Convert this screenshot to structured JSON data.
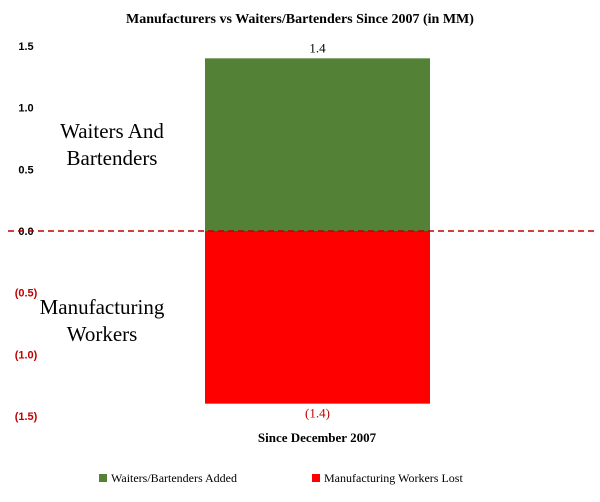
{
  "chart_data": {
    "type": "bar",
    "title": "Manufacturers vs Waiters/Bartenders Since 2007 (in MM)",
    "xlabel": "Since December 2007",
    "ylabel": "",
    "ylim": [
      -1.5,
      1.5
    ],
    "yticks": [
      {
        "value": 1.5,
        "label": "1.5"
      },
      {
        "value": 1.0,
        "label": "1.0"
      },
      {
        "value": 0.5,
        "label": "0.5"
      },
      {
        "value": 0.0,
        "label": "0.0"
      },
      {
        "value": -0.5,
        "label": "(0.5)"
      },
      {
        "value": -1.0,
        "label": "(1.0)"
      },
      {
        "value": -1.5,
        "label": "(1.5)"
      }
    ],
    "zero_line": "dashed",
    "grid": false,
    "legend_position": "bottom",
    "series": [
      {
        "name": "Waiters/Bartenders Added",
        "value": 1.4,
        "data_label": "1.4",
        "color": "#538135"
      },
      {
        "name": "Manufacturing Workers Lost",
        "value": -1.4,
        "data_label": "(1.4)",
        "color": "#ff0000"
      }
    ],
    "annotations": [
      {
        "lines": [
          "Waiters And",
          "Bartenders"
        ]
      },
      {
        "lines": [
          "Manufacturing",
          "Workers"
        ]
      }
    ],
    "colors": {
      "positive_tick": "#000000",
      "negative_tick": "#c00000",
      "negative_label": "#c00000",
      "zero_line": "#c00000"
    }
  }
}
